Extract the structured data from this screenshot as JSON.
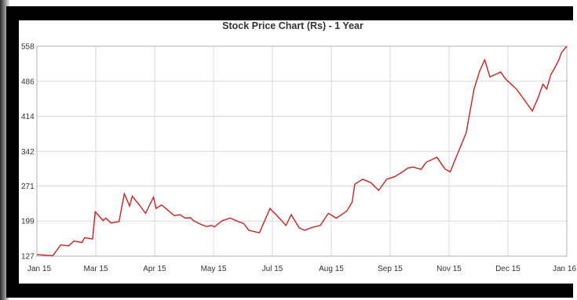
{
  "chart_data": {
    "type": "line",
    "title": "Stock Price Chart (Rs) - 1 Year",
    "xlabel": "",
    "ylabel": "",
    "grid": true,
    "line_color": "#cc2020",
    "x_ticks": [
      "Jan 15",
      "Mar 15",
      "Apr 15",
      "May 15",
      "Jul 15",
      "Aug 15",
      "Sep 15",
      "Nov 15",
      "Dec 15",
      "Jan 16"
    ],
    "y_ticks": [
      "127",
      "199",
      "271",
      "342",
      "414",
      "486",
      "558"
    ],
    "ylim": [
      127,
      558
    ],
    "series": [
      {
        "x": [
          0,
          0.03,
          0.045,
          0.06,
          0.07,
          0.085,
          0.09,
          0.105,
          0.11,
          0.125,
          0.13,
          0.14,
          0.155,
          0.165,
          0.175,
          0.18,
          0.195,
          0.205,
          0.22,
          0.225,
          0.235,
          0.24,
          0.255,
          0.26,
          0.27,
          0.28,
          0.29,
          0.295,
          0.31,
          0.32,
          0.33,
          0.335,
          0.35,
          0.365,
          0.38,
          0.39,
          0.4,
          0.42,
          0.44,
          0.455,
          0.47,
          0.48,
          0.495,
          0.505,
          0.52,
          0.535,
          0.55,
          0.565,
          0.575,
          0.585,
          0.595,
          0.6,
          0.615,
          0.63,
          0.645,
          0.66,
          0.675,
          0.69,
          0.7,
          0.71,
          0.725,
          0.735,
          0.755,
          0.77,
          0.78,
          0.795,
          0.81,
          0.825,
          0.835,
          0.845,
          0.855,
          0.865,
          0.875,
          0.885,
          0.895,
          0.905,
          0.915,
          0.925,
          0.935,
          0.945,
          0.955,
          0.962,
          0.97,
          0.978,
          0.985,
          0.99,
          1.0
        ],
        "values": [
          130,
          128,
          150,
          148,
          158,
          155,
          165,
          162,
          218,
          200,
          205,
          195,
          198,
          255,
          230,
          250,
          230,
          215,
          248,
          225,
          232,
          228,
          214,
          210,
          212,
          205,
          206,
          200,
          192,
          188,
          190,
          187,
          200,
          205,
          198,
          194,
          180,
          175,
          225,
          208,
          190,
          212,
          185,
          180,
          186,
          190,
          215,
          205,
          212,
          220,
          238,
          275,
          285,
          278,
          262,
          285,
          290,
          300,
          308,
          310,
          305,
          320,
          330,
          306,
          300,
          340,
          380,
          470,
          505,
          530,
          495,
          500,
          505,
          490,
          480,
          470,
          455,
          440,
          425,
          450,
          480,
          470,
          500,
          515,
          530,
          545,
          558
        ]
      }
    ]
  }
}
